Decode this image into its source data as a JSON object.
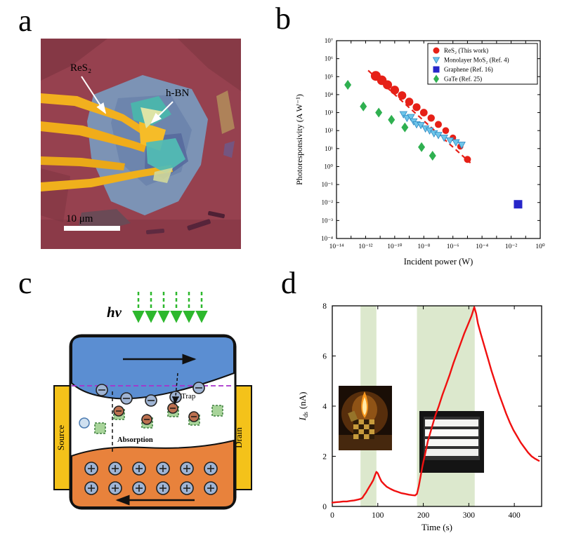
{
  "figure": {
    "panel_labels": {
      "a": "a",
      "b": "b",
      "c": "c",
      "d": "d"
    }
  },
  "panel_a": {
    "label_res2": "ReS₂",
    "label_hbn": "h-BN",
    "scale_bar": "10 μm"
  },
  "panel_c": {
    "hv": "hν",
    "trap": "Trap",
    "absorption": "Absorption",
    "source": "Source",
    "drain": "Drain"
  },
  "chart_data": [
    {
      "panel": "b",
      "type": "scatter",
      "x_scale": "log",
      "y_scale": "log",
      "xlabel": "Incident power (W)",
      "ylabel": "Photoresponsivity (A W⁻¹)",
      "x_log_range": [
        -14,
        0
      ],
      "y_log_range": [
        -4,
        7
      ],
      "x_tick_exps": [
        -14,
        -12,
        -10,
        -8,
        -6,
        -4,
        -2,
        0
      ],
      "x_tick_labels": [
        "10⁻¹⁴",
        "10⁻¹²",
        "10⁻¹⁰",
        "10⁻⁸",
        "10⁻⁶",
        "10⁻⁴",
        "10⁻²",
        "10⁰"
      ],
      "y_tick_exps": [
        -4,
        -3,
        -2,
        -1,
        0,
        1,
        2,
        3,
        4,
        5,
        6,
        7
      ],
      "y_tick_labels": [
        "10⁻⁴",
        "10⁻³",
        "10⁻²",
        "10⁻¹",
        "10⁰",
        "10¹",
        "10²",
        "10³",
        "10⁴",
        "10⁵",
        "10⁶",
        "10⁷"
      ],
      "legend_position": "top-right",
      "series": [
        {
          "name": "ReS₂ (This work)",
          "marker": "circle",
          "color": "#e62017",
          "sizes": [
            7,
            6.8,
            6.5,
            6.2,
            6,
            5.8,
            5.6,
            5.4,
            5.2,
            5,
            4.8,
            4.6,
            4.4,
            5
          ],
          "points": [
            [
              5e-12,
              110000.0
            ],
            [
              1.3e-11,
              63000.0
            ],
            [
              3.2e-11,
              35000.0
            ],
            [
              1e-10,
              18000.0
            ],
            [
              3.2e-10,
              9000
            ],
            [
              1e-09,
              4000
            ],
            [
              3.2e-09,
              2000
            ],
            [
              1e-08,
              1000
            ],
            [
              3.2e-08,
              500
            ],
            [
              1e-07,
              220
            ],
            [
              3.2e-07,
              100
            ],
            [
              1e-06,
              40
            ],
            [
              3.2e-06,
              13
            ],
            [
              1e-05,
              2.5
            ]
          ],
          "trend_line": {
            "x1": 1.5e-12,
            "y1": 220000.0,
            "x2": 1.6e-05,
            "y2": 1.6,
            "style": "dashed"
          }
        },
        {
          "name": "Monolayer MoS₂ (Ref. 4)",
          "marker": "triangle-down",
          "color": "#6ec6ea",
          "stroke": "#2e86c0",
          "size": 5,
          "points": [
            [
              4e-10,
              800
            ],
            [
              7e-10,
              500
            ],
            [
              1.3e-09,
              560
            ],
            [
              2e-09,
              320
            ],
            [
              3.2e-09,
              220
            ],
            [
              6.3e-09,
              200
            ],
            [
              1.3e-08,
              130
            ],
            [
              2.5e-08,
              100
            ],
            [
              5e-08,
              70
            ],
            [
              1e-07,
              56
            ],
            [
              2.5e-07,
              40
            ],
            [
              6.3e-07,
              28
            ],
            [
              1.6e-06,
              22
            ],
            [
              4e-06,
              16
            ]
          ]
        },
        {
          "name": "Graphene (Ref. 16)",
          "marker": "square",
          "color": "#2726c9",
          "size": 6,
          "points": [
            [
              0.03,
              0.008
            ]
          ]
        },
        {
          "name": "GaTe (Ref. 25)",
          "marker": "diamond",
          "color": "#2fb050",
          "size": 5.5,
          "points": [
            [
              6e-14,
              35000.0
            ],
            [
              7e-13,
              2200
            ],
            [
              8e-12,
              1000
            ],
            [
              6e-11,
              400
            ],
            [
              5e-10,
              150
            ],
            [
              7e-09,
              12
            ],
            [
              4e-08,
              4
            ]
          ]
        }
      ]
    },
    {
      "panel": "d",
      "type": "line",
      "xlabel": "Time (s)",
      "ylabel": "Ids (nA)",
      "ylabel_parts": {
        "symbol": "I",
        "subscript": "ds",
        "unit": "(nA)"
      },
      "xlim": [
        0,
        460
      ],
      "ylim": [
        0,
        8
      ],
      "x_ticks": [
        0,
        100,
        200,
        300,
        400
      ],
      "y_ticks": [
        0,
        2,
        4,
        6,
        8
      ],
      "light_on_bands": [
        [
          62,
          97
        ],
        [
          186,
          313
        ]
      ],
      "band_color": "#dce8cd",
      "line_color": "#f01010",
      "points": [
        [
          0,
          0.15
        ],
        [
          8,
          0.17
        ],
        [
          16,
          0.18
        ],
        [
          24,
          0.2
        ],
        [
          32,
          0.2
        ],
        [
          40,
          0.22
        ],
        [
          48,
          0.24
        ],
        [
          56,
          0.27
        ],
        [
          62,
          0.3
        ],
        [
          66,
          0.34
        ],
        [
          70,
          0.45
        ],
        [
          74,
          0.55
        ],
        [
          78,
          0.68
        ],
        [
          82,
          0.8
        ],
        [
          86,
          0.92
        ],
        [
          90,
          1.05
        ],
        [
          94,
          1.25
        ],
        [
          97,
          1.38
        ],
        [
          100,
          1.32
        ],
        [
          104,
          1.15
        ],
        [
          108,
          1.0
        ],
        [
          114,
          0.88
        ],
        [
          120,
          0.78
        ],
        [
          128,
          0.7
        ],
        [
          136,
          0.63
        ],
        [
          144,
          0.58
        ],
        [
          152,
          0.53
        ],
        [
          160,
          0.5
        ],
        [
          168,
          0.47
        ],
        [
          176,
          0.45
        ],
        [
          182,
          0.44
        ],
        [
          186,
          0.5
        ],
        [
          190,
          0.8
        ],
        [
          194,
          1.2
        ],
        [
          198,
          1.6
        ],
        [
          204,
          2.1
        ],
        [
          210,
          2.6
        ],
        [
          218,
          3.1
        ],
        [
          226,
          3.6
        ],
        [
          234,
          4.0
        ],
        [
          242,
          4.45
        ],
        [
          250,
          4.85
        ],
        [
          258,
          5.25
        ],
        [
          266,
          5.7
        ],
        [
          274,
          6.1
        ],
        [
          282,
          6.5
        ],
        [
          290,
          6.9
        ],
        [
          298,
          7.25
        ],
        [
          306,
          7.6
        ],
        [
          312,
          7.95
        ],
        [
          316,
          7.7
        ],
        [
          320,
          7.3
        ],
        [
          326,
          6.9
        ],
        [
          334,
          6.4
        ],
        [
          342,
          5.9
        ],
        [
          350,
          5.4
        ],
        [
          358,
          4.95
        ],
        [
          366,
          4.5
        ],
        [
          374,
          4.1
        ],
        [
          382,
          3.7
        ],
        [
          390,
          3.35
        ],
        [
          398,
          3.05
        ],
        [
          406,
          2.8
        ],
        [
          414,
          2.55
        ],
        [
          422,
          2.35
        ],
        [
          430,
          2.15
        ],
        [
          438,
          2.0
        ],
        [
          446,
          1.9
        ],
        [
          454,
          1.82
        ]
      ]
    }
  ]
}
